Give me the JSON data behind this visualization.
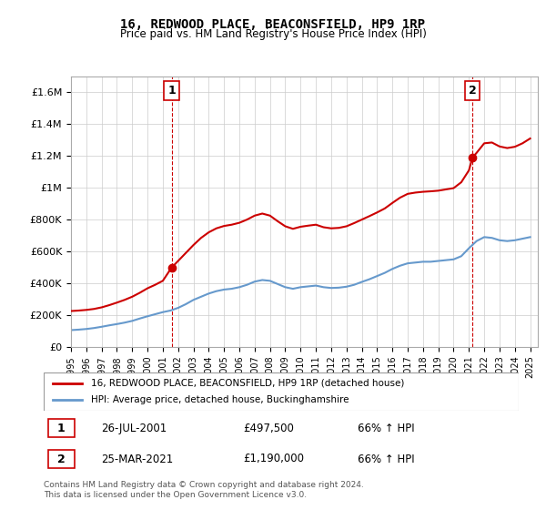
{
  "title": "16, REDWOOD PLACE, BEACONSFIELD, HP9 1RP",
  "subtitle": "Price paid vs. HM Land Registry's House Price Index (HPI)",
  "legend_line1": "16, REDWOOD PLACE, BEACONSFIELD, HP9 1RP (detached house)",
  "legend_line2": "HPI: Average price, detached house, Buckinghamshire",
  "footer1": "Contains HM Land Registry data © Crown copyright and database right 2024.",
  "footer2": "This data is licensed under the Open Government Licence v3.0.",
  "annotation1_label": "1",
  "annotation1_date": "26-JUL-2001",
  "annotation1_price": "£497,500",
  "annotation1_hpi": "66% ↑ HPI",
  "annotation2_label": "2",
  "annotation2_date": "25-MAR-2021",
  "annotation2_price": "£1,190,000",
  "annotation2_hpi": "66% ↑ HPI",
  "sale1_x": 2001.57,
  "sale1_y": 497500,
  "sale2_x": 2021.23,
  "sale2_y": 1190000,
  "red_color": "#cc0000",
  "blue_color": "#6699cc",
  "vline_color": "#cc0000",
  "grid_color": "#cccccc",
  "ylim": [
    0,
    1700000
  ],
  "xlim_start": 1995.0,
  "xlim_end": 2025.5,
  "hpi_x": [
    1995.0,
    1995.5,
    1996.0,
    1996.5,
    1997.0,
    1997.5,
    1998.0,
    1998.5,
    1999.0,
    1999.5,
    2000.0,
    2000.5,
    2001.0,
    2001.5,
    2002.0,
    2002.5,
    2003.0,
    2003.5,
    2004.0,
    2004.5,
    2005.0,
    2005.5,
    2006.0,
    2006.5,
    2007.0,
    2007.5,
    2008.0,
    2008.5,
    2009.0,
    2009.5,
    2010.0,
    2010.5,
    2011.0,
    2011.5,
    2012.0,
    2012.5,
    2013.0,
    2013.5,
    2014.0,
    2014.5,
    2015.0,
    2015.5,
    2016.0,
    2016.5,
    2017.0,
    2017.5,
    2018.0,
    2018.5,
    2019.0,
    2019.5,
    2020.0,
    2020.5,
    2021.0,
    2021.5,
    2022.0,
    2022.5,
    2023.0,
    2023.5,
    2024.0,
    2024.5,
    2025.0
  ],
  "hpi_y": [
    105000,
    108000,
    112000,
    118000,
    126000,
    135000,
    143000,
    152000,
    163000,
    178000,
    192000,
    205000,
    218000,
    228000,
    245000,
    268000,
    295000,
    315000,
    335000,
    350000,
    360000,
    365000,
    375000,
    390000,
    410000,
    420000,
    415000,
    395000,
    375000,
    365000,
    375000,
    380000,
    385000,
    375000,
    370000,
    372000,
    378000,
    390000,
    408000,
    425000,
    445000,
    465000,
    490000,
    510000,
    525000,
    530000,
    535000,
    535000,
    540000,
    545000,
    550000,
    570000,
    620000,
    665000,
    690000,
    685000,
    670000,
    665000,
    670000,
    680000,
    690000
  ],
  "red_x": [
    1995.0,
    1995.5,
    1996.0,
    1996.5,
    1997.0,
    1997.5,
    1998.0,
    1998.5,
    1999.0,
    1999.5,
    2000.0,
    2000.5,
    2001.0,
    2001.57,
    2002.0,
    2002.5,
    2003.0,
    2003.5,
    2004.0,
    2004.5,
    2005.0,
    2005.5,
    2006.0,
    2006.5,
    2007.0,
    2007.5,
    2008.0,
    2008.5,
    2009.0,
    2009.5,
    2010.0,
    2010.5,
    2011.0,
    2011.5,
    2012.0,
    2012.5,
    2013.0,
    2013.5,
    2014.0,
    2014.5,
    2015.0,
    2015.5,
    2016.0,
    2016.5,
    2017.0,
    2017.5,
    2018.0,
    2018.5,
    2019.0,
    2019.5,
    2020.0,
    2020.5,
    2021.0,
    2021.23,
    2021.5,
    2022.0,
    2022.5,
    2023.0,
    2023.5,
    2024.0,
    2024.5,
    2025.0
  ],
  "red_y": [
    225000,
    228000,
    232000,
    238000,
    248000,
    262000,
    278000,
    295000,
    315000,
    340000,
    368000,
    390000,
    415000,
    497500,
    540000,
    590000,
    640000,
    685000,
    720000,
    745000,
    760000,
    768000,
    780000,
    800000,
    825000,
    838000,
    825000,
    790000,
    758000,
    742000,
    755000,
    762000,
    768000,
    752000,
    745000,
    748000,
    758000,
    778000,
    800000,
    822000,
    845000,
    870000,
    905000,
    938000,
    962000,
    970000,
    975000,
    978000,
    982000,
    990000,
    998000,
    1035000,
    1110000,
    1190000,
    1220000,
    1280000,
    1285000,
    1260000,
    1250000,
    1258000,
    1280000,
    1310000
  ]
}
